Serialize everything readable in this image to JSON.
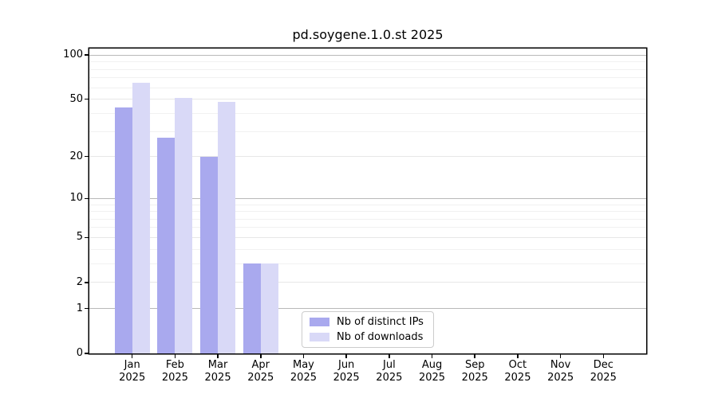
{
  "chart_data": {
    "type": "bar",
    "title": "pd.soygene.1.0.st 2025",
    "categories": [
      "Jan",
      "Feb",
      "Mar",
      "Apr",
      "May",
      "Jun",
      "Jul",
      "Aug",
      "Sep",
      "Oct",
      "Nov",
      "Dec"
    ],
    "category_year": "2025",
    "series": [
      {
        "name": "Nb of distinct IPs",
        "color": "#a9a9ee",
        "values": [
          44,
          27,
          20,
          3,
          0,
          0,
          0,
          0,
          0,
          0,
          0,
          0
        ]
      },
      {
        "name": "Nb of downloads",
        "color": "#d9d9f7",
        "values": [
          65,
          51,
          48,
          3,
          0,
          0,
          0,
          0,
          0,
          0,
          0,
          0
        ]
      }
    ],
    "y_axis": {
      "scale": "log10(v+1)",
      "tick_values": [
        0,
        1,
        2,
        5,
        10,
        20,
        50,
        100
      ],
      "tick_labels": [
        "0",
        "1",
        "2",
        "5",
        "10",
        "20",
        "50",
        "100"
      ],
      "range_max": 110,
      "major_grid": [
        1,
        10,
        100
      ],
      "mid_grid": [
        2,
        5,
        20,
        50
      ],
      "minor_grid": [
        3,
        4,
        6,
        7,
        8,
        9,
        30,
        40,
        60,
        70,
        80,
        90
      ],
      "grid_colors": {
        "major": "#b9b9b9",
        "mid": "#e7e7e7",
        "minor": "#f1f1f1"
      }
    },
    "legend": {
      "position": "lower center"
    }
  }
}
